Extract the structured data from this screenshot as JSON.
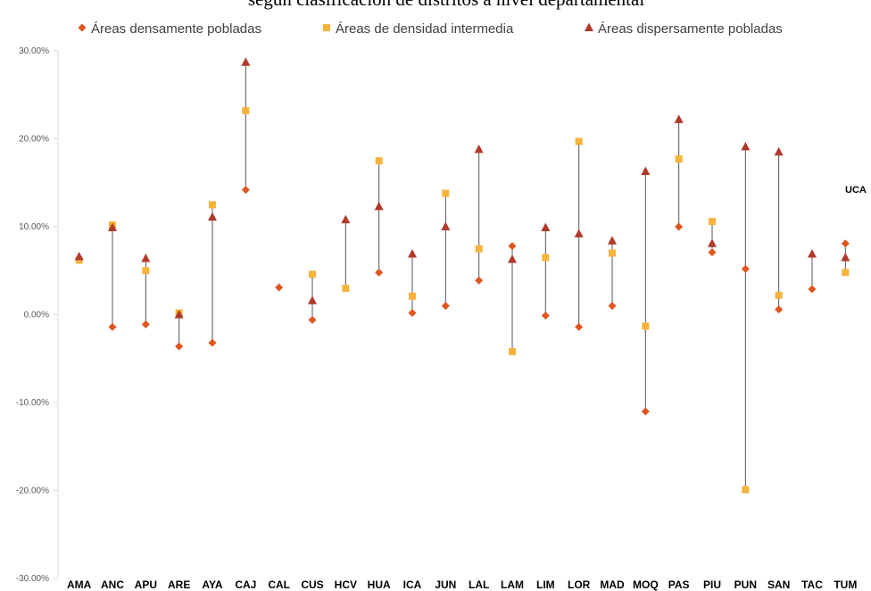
{
  "chart_data": {
    "type": "scatter",
    "title": "según clasificación de distritos a nivel departamental",
    "annotation": "UCA",
    "categories": [
      "AMA",
      "ANC",
      "APU",
      "ARE",
      "AYA",
      "CAJ",
      "CAL",
      "CUS",
      "HCV",
      "HUA",
      "ICA",
      "JUN",
      "LAL",
      "LAM",
      "LIM",
      "LOR",
      "MAD",
      "MOQ",
      "PAS",
      "PIU",
      "PUN",
      "SAN",
      "TAC",
      "TUM"
    ],
    "series": [
      {
        "name": "Áreas densamente pobladas",
        "color": "#e0561f",
        "marker": "diamond",
        "values": [
          6.3,
          -1.4,
          -1.1,
          -3.6,
          -3.2,
          14.2,
          3.1,
          -0.6,
          null,
          4.8,
          0.2,
          1.0,
          3.9,
          7.8,
          -0.1,
          -1.4,
          1.0,
          -11.0,
          10.0,
          7.1,
          5.2,
          0.6,
          2.9,
          8.1
        ]
      },
      {
        "name": "Áreas de densidad intermedia",
        "color": "#f7b33b",
        "marker": "square",
        "values": [
          6.2,
          10.2,
          5.0,
          0.2,
          12.5,
          23.2,
          null,
          4.6,
          3.0,
          17.5,
          2.1,
          13.8,
          7.5,
          -4.2,
          6.5,
          19.7,
          7.0,
          -1.3,
          17.7,
          10.6,
          -19.9,
          2.2,
          null,
          4.8
        ]
      },
      {
        "name": "Áreas dispersamente pobladas",
        "color": "#b0392b",
        "marker": "triangle",
        "values": [
          6.6,
          9.9,
          6.4,
          0.0,
          11.1,
          28.7,
          null,
          1.6,
          10.8,
          12.3,
          6.9,
          10.0,
          18.8,
          6.3,
          9.9,
          9.2,
          8.4,
          16.3,
          22.2,
          8.1,
          19.1,
          18.5,
          6.9,
          6.5
        ]
      }
    ],
    "ylim": [
      -30,
      30
    ],
    "yticks": [
      {
        "value": -30,
        "label": "-30.00%"
      },
      {
        "value": -20,
        "label": "-20.00%"
      },
      {
        "value": -10,
        "label": "-10.00%"
      },
      {
        "value": 0,
        "label": "0.00%"
      },
      {
        "value": 10,
        "label": "10.00%"
      },
      {
        "value": 20,
        "label": "20.00%"
      },
      {
        "value": 30,
        "label": "30.00%"
      }
    ],
    "legend": "top"
  }
}
